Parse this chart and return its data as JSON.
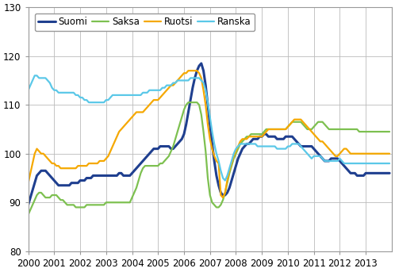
{
  "ylim": [
    80,
    130
  ],
  "xlim": [
    2000.0,
    2014.0
  ],
  "yticks": [
    80,
    90,
    100,
    110,
    120,
    130
  ],
  "xtick_labels": [
    "2000",
    "2001",
    "2002",
    "2003",
    "2004",
    "2005",
    "2006",
    "2007",
    "2008",
    "2009",
    "2010",
    "2011",
    "2012",
    "2013"
  ],
  "legend_labels": [
    "Suomi",
    "Saksa",
    "Ruotsi",
    "Ranska"
  ],
  "colors": {
    "Suomi": "#1f3f8f",
    "Saksa": "#7dc050",
    "Ruotsi": "#f5a800",
    "Ranska": "#5bc8e8"
  },
  "linewidths": {
    "Suomi": 2.2,
    "Saksa": 1.6,
    "Ruotsi": 1.6,
    "Ranska": 1.6
  },
  "Suomi": [
    89.5,
    91.0,
    92.5,
    94.0,
    95.5,
    96.0,
    96.5,
    96.5,
    96.5,
    96.0,
    95.5,
    95.0,
    94.5,
    94.0,
    93.5,
    93.5,
    93.5,
    93.5,
    93.5,
    93.5,
    94.0,
    94.0,
    94.0,
    94.0,
    94.5,
    94.5,
    94.5,
    95.0,
    95.0,
    95.0,
    95.5,
    95.5,
    95.5,
    95.5,
    95.5,
    95.5,
    95.5,
    95.5,
    95.5,
    95.5,
    95.5,
    95.5,
    96.0,
    96.0,
    95.5,
    95.5,
    95.5,
    95.5,
    96.0,
    96.5,
    97.0,
    97.5,
    98.0,
    98.5,
    99.0,
    99.5,
    100.0,
    100.5,
    101.0,
    101.0,
    101.0,
    101.5,
    101.5,
    101.5,
    101.5,
    101.5,
    101.0,
    101.0,
    101.5,
    102.0,
    102.5,
    103.0,
    104.0,
    106.0,
    108.5,
    111.0,
    113.5,
    115.5,
    117.0,
    118.0,
    118.5,
    117.0,
    114.0,
    110.0,
    106.0,
    102.0,
    98.5,
    95.5,
    93.5,
    92.0,
    91.5,
    91.5,
    92.0,
    93.0,
    94.5,
    96.0,
    97.5,
    99.0,
    100.0,
    101.0,
    101.5,
    102.0,
    102.0,
    102.5,
    103.0,
    103.0,
    103.0,
    103.5,
    103.5,
    104.0,
    104.0,
    103.5,
    103.5,
    103.5,
    103.5,
    103.0,
    103.0,
    103.0,
    103.0,
    103.5,
    103.5,
    103.5,
    103.5,
    103.0,
    102.5,
    102.0,
    101.5,
    101.5,
    101.5,
    101.5,
    101.5,
    101.5,
    101.0,
    100.5,
    100.0,
    99.5,
    99.0,
    98.5,
    98.5,
    98.5,
    99.0,
    99.0,
    99.0,
    99.0,
    98.5,
    98.0,
    97.5,
    97.0,
    96.5,
    96.0,
    96.0,
    96.0,
    95.5,
    95.5,
    95.5,
    95.5,
    96.0,
    96.0,
    96.0,
    96.0,
    96.0,
    96.0,
    96.0,
    96.0,
    96.0,
    96.0,
    96.0,
    96.0
  ],
  "Saksa": [
    87.5,
    88.5,
    89.5,
    90.5,
    91.5,
    92.0,
    92.0,
    91.5,
    91.0,
    91.0,
    91.0,
    91.5,
    91.5,
    91.5,
    91.0,
    90.5,
    90.5,
    90.0,
    89.5,
    89.5,
    89.5,
    89.5,
    89.0,
    89.0,
    89.0,
    89.0,
    89.0,
    89.5,
    89.5,
    89.5,
    89.5,
    89.5,
    89.5,
    89.5,
    89.5,
    89.5,
    90.0,
    90.0,
    90.0,
    90.0,
    90.0,
    90.0,
    90.0,
    90.0,
    90.0,
    90.0,
    90.0,
    90.0,
    91.0,
    92.0,
    93.0,
    94.5,
    96.0,
    97.0,
    97.5,
    97.5,
    97.5,
    97.5,
    97.5,
    97.5,
    97.5,
    98.0,
    98.0,
    98.5,
    99.0,
    99.5,
    100.5,
    101.5,
    103.0,
    104.5,
    106.0,
    107.5,
    109.0,
    110.0,
    110.5,
    110.5,
    110.5,
    110.5,
    110.5,
    110.0,
    108.0,
    104.5,
    100.5,
    95.0,
    91.5,
    90.0,
    89.5,
    89.0,
    89.0,
    89.5,
    90.5,
    92.0,
    94.0,
    96.0,
    97.5,
    99.0,
    100.0,
    101.0,
    102.0,
    102.5,
    103.0,
    103.5,
    103.5,
    104.0,
    104.0,
    104.0,
    104.0,
    104.0,
    104.0,
    104.5,
    105.0,
    105.0,
    105.0,
    105.0,
    105.0,
    105.0,
    105.0,
    105.0,
    105.0,
    105.0,
    105.5,
    106.0,
    106.5,
    106.5,
    106.5,
    106.5,
    106.5,
    106.0,
    105.5,
    105.0,
    105.0,
    105.0,
    105.5,
    106.0,
    106.5,
    106.5,
    106.5,
    106.0,
    105.5,
    105.0,
    105.0,
    105.0,
    105.0,
    105.0,
    105.0,
    105.0,
    105.0,
    105.0,
    105.0,
    105.0,
    105.0,
    105.0,
    105.0,
    104.5,
    104.5,
    104.5,
    104.5,
    104.5,
    104.5,
    104.5,
    104.5,
    104.5,
    104.5,
    104.5,
    104.5,
    104.5,
    104.5,
    104.5
  ],
  "Ruotsi": [
    94.0,
    96.0,
    98.0,
    100.0,
    101.0,
    100.5,
    100.0,
    100.0,
    99.5,
    99.0,
    98.5,
    98.0,
    98.0,
    97.5,
    97.5,
    97.0,
    97.0,
    97.0,
    97.0,
    97.0,
    97.0,
    97.0,
    97.0,
    97.5,
    97.5,
    97.5,
    97.5,
    97.5,
    98.0,
    98.0,
    98.0,
    98.0,
    98.0,
    98.5,
    98.5,
    98.5,
    99.0,
    99.5,
    100.5,
    101.5,
    102.5,
    103.5,
    104.5,
    105.0,
    105.5,
    106.0,
    106.5,
    107.0,
    107.5,
    108.0,
    108.5,
    108.5,
    108.5,
    108.5,
    109.0,
    109.5,
    110.0,
    110.5,
    111.0,
    111.0,
    111.0,
    111.5,
    112.0,
    112.5,
    113.0,
    113.5,
    114.0,
    114.0,
    114.5,
    115.0,
    115.5,
    116.0,
    116.5,
    116.5,
    117.0,
    117.0,
    117.0,
    117.0,
    117.0,
    116.5,
    115.5,
    113.0,
    110.0,
    106.0,
    103.0,
    101.0,
    99.5,
    98.5,
    98.0,
    91.5,
    91.0,
    92.0,
    94.5,
    96.5,
    98.0,
    99.5,
    100.5,
    101.5,
    102.5,
    103.0,
    103.0,
    103.0,
    103.5,
    103.5,
    103.5,
    103.5,
    103.5,
    103.5,
    103.5,
    104.0,
    104.5,
    105.0,
    105.0,
    105.0,
    105.0,
    105.0,
    105.0,
    105.0,
    105.0,
    105.0,
    105.5,
    106.0,
    106.5,
    107.0,
    107.0,
    107.0,
    107.0,
    106.5,
    106.0,
    105.5,
    105.0,
    104.5,
    104.0,
    103.5,
    103.0,
    102.5,
    102.5,
    102.0,
    101.5,
    101.0,
    100.5,
    100.0,
    99.5,
    99.5,
    100.0,
    100.5,
    101.0,
    101.0,
    100.5,
    100.0,
    100.0,
    100.0,
    100.0,
    100.0,
    100.0,
    100.0,
    100.0,
    100.0,
    100.0,
    100.0,
    100.0,
    100.0,
    100.0,
    100.0,
    100.0,
    100.0,
    100.0,
    100.0
  ],
  "Ranska": [
    113.0,
    114.0,
    115.0,
    116.0,
    116.0,
    115.5,
    115.5,
    115.5,
    115.5,
    115.0,
    114.5,
    113.5,
    113.0,
    113.0,
    112.5,
    112.5,
    112.5,
    112.5,
    112.5,
    112.5,
    112.5,
    112.5,
    112.0,
    112.0,
    111.5,
    111.5,
    111.0,
    111.0,
    110.5,
    110.5,
    110.5,
    110.5,
    110.5,
    110.5,
    110.5,
    110.5,
    111.0,
    111.0,
    111.5,
    112.0,
    112.0,
    112.0,
    112.0,
    112.0,
    112.0,
    112.0,
    112.0,
    112.0,
    112.0,
    112.0,
    112.0,
    112.0,
    112.0,
    112.5,
    112.5,
    112.5,
    113.0,
    113.0,
    113.0,
    113.0,
    113.0,
    113.0,
    113.5,
    113.5,
    114.0,
    114.0,
    114.0,
    114.5,
    114.5,
    115.0,
    115.0,
    115.0,
    115.0,
    115.0,
    115.0,
    115.5,
    115.5,
    115.5,
    115.5,
    115.5,
    115.0,
    114.5,
    113.0,
    110.5,
    107.5,
    104.5,
    102.0,
    100.0,
    98.5,
    96.5,
    95.0,
    94.5,
    95.5,
    97.0,
    98.5,
    100.0,
    101.0,
    101.5,
    102.0,
    102.0,
    102.0,
    102.0,
    102.0,
    102.0,
    102.0,
    102.0,
    101.5,
    101.5,
    101.5,
    101.5,
    101.5,
    101.5,
    101.5,
    101.5,
    101.5,
    101.0,
    101.0,
    101.0,
    101.0,
    101.0,
    101.5,
    101.5,
    102.0,
    102.0,
    102.0,
    102.0,
    101.5,
    101.0,
    100.5,
    100.0,
    99.5,
    99.0,
    99.5,
    99.5,
    99.5,
    99.5,
    99.0,
    98.5,
    98.5,
    98.5,
    98.5,
    98.5,
    98.5,
    98.5,
    99.0,
    98.5,
    98.0,
    98.0,
    98.0,
    98.0,
    98.0,
    98.0,
    98.0,
    98.0,
    98.0,
    98.0,
    98.0,
    98.0,
    98.0,
    98.0,
    98.0,
    98.0,
    98.0,
    98.0,
    98.0,
    98.0,
    98.0,
    98.0
  ],
  "background_color": "#ffffff",
  "grid_color": "#bbbbbb",
  "spine_color": "#999999"
}
